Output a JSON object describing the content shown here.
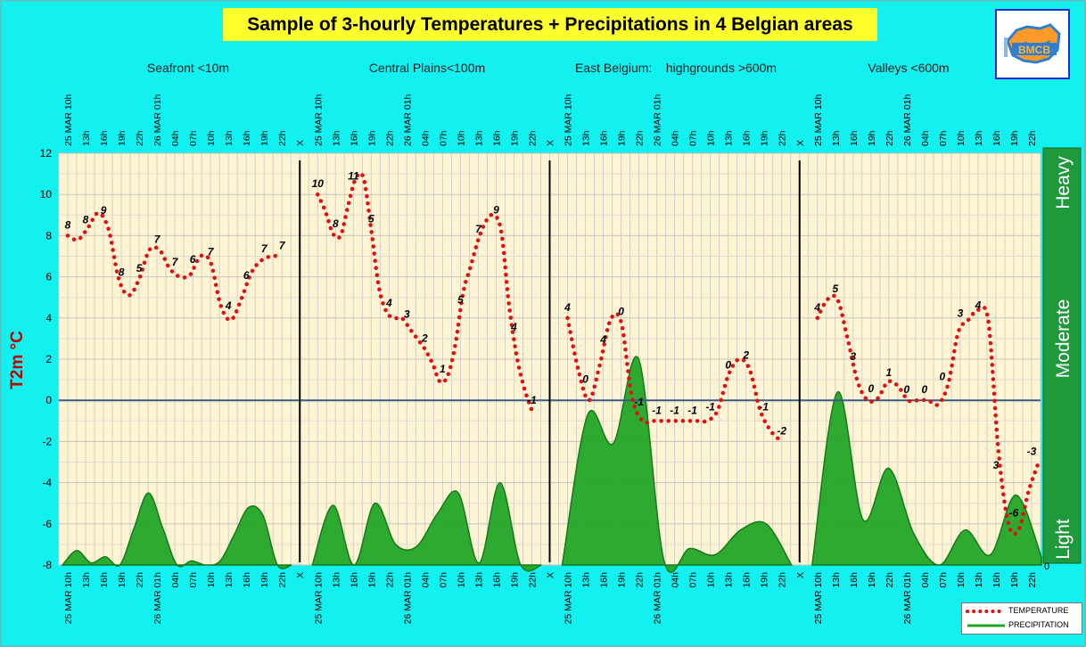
{
  "colors": {
    "background": "#12f0f0",
    "plot_bg": "#fff5d2",
    "temperature": "#e01010",
    "precipitation": "#22a526",
    "intensity_bar": "#1e9a3c",
    "title_bg": "#ffff2e",
    "axis_label": "#c00000"
  },
  "chart_data": {
    "type": "line",
    "title": "Sample of 3-hourly Temperatures + Precipitations in 4 Belgian areas",
    "ylabel": "T2m °C",
    "ylim": [
      -8,
      12
    ],
    "yticks": [
      "12",
      "10",
      "8",
      "6",
      "4",
      "2",
      "0",
      "-2",
      "-4",
      "-6",
      "-8"
    ],
    "right_axis": {
      "labels": [
        "Heavy",
        "Moderate",
        "Light"
      ],
      "tick": "0"
    },
    "separator_label": "X",
    "grid": true,
    "legend": {
      "position": "bottom-right",
      "entries": [
        "TEMPERATURE",
        "PRECIPITATION"
      ]
    },
    "areas": [
      {
        "name": "Seafront <10m",
        "x": [
          "25 MAR 10h",
          "13h",
          "16h",
          "19h",
          "22h",
          "26 MAR 01h",
          "04h",
          "07h",
          "10h",
          "13h",
          "16h",
          "19h",
          "22h"
        ],
        "temperature": [
          8,
          7.8,
          8.4,
          9.1,
          8.3,
          5.9,
          5.1,
          5.9,
          7.3,
          7.3,
          6.4,
          6.0,
          6.1,
          7.0,
          6.7,
          4.6,
          3.9,
          4.9,
          6.2,
          6.8,
          7.0,
          7.0
        ],
        "temperature_labels": [
          "8",
          "8",
          "9",
          "8",
          "5",
          "7",
          "7",
          "6",
          "7",
          "4",
          "6",
          "7",
          "7"
        ],
        "precipitation": [
          -8,
          -7.3,
          -7.9,
          -7.6,
          -8,
          -6.2,
          -4.5,
          -6.2,
          -8,
          -7.8,
          -8,
          -7.8,
          -6.5,
          -5.2,
          -5.6,
          -8,
          -8
        ]
      },
      {
        "name": "Central Plains<100m",
        "x": [
          "25 MAR 10h",
          "13h",
          "16h",
          "19h",
          "22h",
          "26 MAR 01h",
          "04h",
          "07h",
          "10h",
          "13h",
          "16h",
          "19h",
          "22h"
        ],
        "temperature": [
          10,
          9.2,
          8.1,
          8.0,
          9.5,
          10.8,
          10.8,
          8.3,
          5.5,
          4.3,
          4.0,
          4.0,
          3.5,
          3.0,
          2.5,
          1.8,
          0.9,
          1.2,
          2.7,
          5.2,
          6.5,
          7.8,
          8.7,
          9.0,
          8.2,
          4.7,
          2.2,
          0.6,
          -0.5
        ],
        "temperature_labels": [
          "10",
          "8",
          "11",
          "5",
          "4",
          "3",
          "2",
          "1",
          "5",
          "7",
          "9",
          "4",
          "-1"
        ],
        "precipitation": [
          -8,
          -5.1,
          -8,
          -5.0,
          -7.0,
          -7.1,
          -5.5,
          -4.5,
          -7.9,
          -4.0,
          -8,
          -8
        ]
      },
      {
        "name": "East Belgium:    highgrounds >600m",
        "x": [
          "25 MAR 10h",
          "13h",
          "16h",
          "19h",
          "22h",
          "26 MAR 01h",
          "04h",
          "07h",
          "10h",
          "13h",
          "16h",
          "19h",
          "22h"
        ],
        "temperature": [
          4,
          1.5,
          0,
          1.7,
          3.9,
          3.8,
          0.2,
          -1.0,
          -1.0,
          -1.0,
          -1.0,
          -1.0,
          -1.0,
          -1.0,
          -0.5,
          1.2,
          2.0,
          1.5,
          -0.5,
          -1.5,
          -2.0
        ],
        "temperature_labels": [
          "4",
          "0",
          "4",
          "0",
          "-1",
          "-1",
          "-1",
          "-1",
          "-1",
          "0",
          "2",
          "-1",
          "-2"
        ],
        "precipitation": [
          -8,
          -0.7,
          -2.1,
          2.0,
          -7.8,
          -7.2,
          -7.5,
          -6.3,
          -6.0,
          -8
        ]
      },
      {
        "name": "Valleys <600m",
        "x": [
          "25 MAR 10h",
          "13h",
          "16h",
          "19h",
          "22h",
          "26 MAR 01h",
          "04h",
          "07h",
          "10h",
          "13h",
          "16h",
          "19h",
          "22h"
        ],
        "temperature": [
          4,
          4.9,
          4.9,
          3.0,
          0.9,
          0,
          0.1,
          0.9,
          0.7,
          0.0,
          0.0,
          0.0,
          -0.2,
          0.8,
          3.3,
          3.9,
          4.4,
          3.8,
          -2.5,
          -6.0,
          -6.3,
          -4.4,
          -3.0
        ],
        "temperature_labels": [
          "4",
          "5",
          "3",
          "0",
          "1",
          "0",
          "0",
          "0",
          "3",
          "4",
          "3",
          "-6",
          "-3"
        ],
        "precipitation": [
          -8,
          0.4,
          -5.8,
          -3.3,
          -6.5,
          -8,
          -6.3,
          -7.5,
          -4.6,
          -7.6
        ]
      }
    ]
  }
}
